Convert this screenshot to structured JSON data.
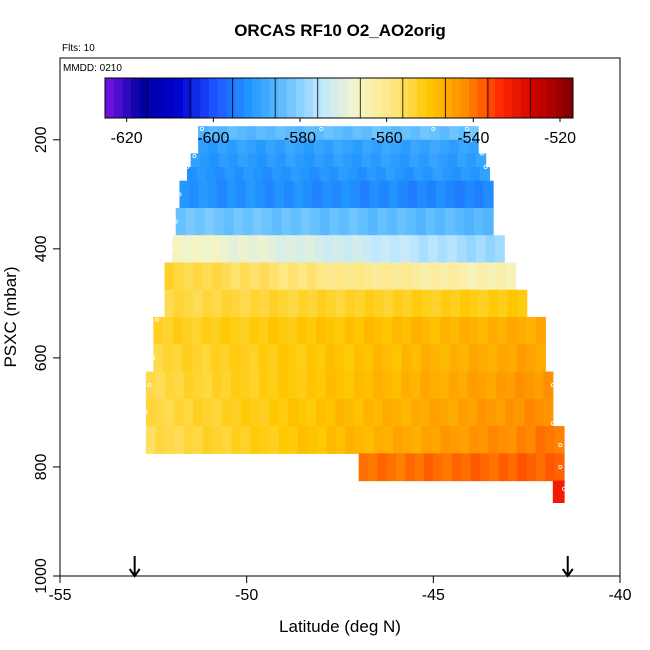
{
  "chart_data": {
    "type": "heatmap",
    "title": "ORCAS RF10 O2_AO2orig",
    "flights_label": "Flts: 10",
    "date_label": "MMDD: 0210",
    "xlabel": "Latitude (deg N)",
    "ylabel": "PSXC (mbar)",
    "xlim": [
      -55,
      -40
    ],
    "ylim": [
      1000,
      50
    ],
    "x_ticks": [
      "-55",
      "-50",
      "-45",
      "-40"
    ],
    "y_ticks": [
      "200",
      "400",
      "600",
      "800",
      "1000"
    ],
    "colorbar": {
      "range": [
        -625,
        -517
      ],
      "tick_values": [
        -620,
        -600,
        -580,
        -560,
        -540,
        -520
      ],
      "tick_labels": [
        "-620",
        "-600",
        "-580",
        "-560",
        "-540",
        "-520"
      ],
      "colors": [
        "#7b14e8",
        "#0000a0",
        "#0000d0",
        "#1e50ff",
        "#2196ff",
        "#64c0ff",
        "#c0e8ff",
        "#f5f5c8",
        "#ffe680",
        "#ffc800",
        "#ff8c00",
        "#ff2800",
        "#c80000",
        "#800000"
      ]
    },
    "arrows_at_lat": [
      -53.0,
      -41.4
    ],
    "rows": [
      {
        "p_top": 175,
        "p_bot": 200,
        "lat_min": -51.3,
        "lat_max": -43.8,
        "value_south": -585,
        "value_north": -583
      },
      {
        "p_top": 200,
        "p_bot": 225,
        "lat_min": -51.3,
        "lat_max": -43.8,
        "value_south": -590,
        "value_north": -589
      },
      {
        "p_top": 225,
        "p_bot": 250,
        "lat_min": -51.5,
        "lat_max": -43.6,
        "value_south": -591,
        "value_north": -590
      },
      {
        "p_top": 250,
        "p_bot": 275,
        "lat_min": -51.6,
        "lat_max": -43.5,
        "value_south": -592,
        "value_north": -591
      },
      {
        "p_top": 275,
        "p_bot": 325,
        "lat_min": -51.8,
        "lat_max": -43.4,
        "value_south": -592,
        "value_north": -594
      },
      {
        "p_top": 325,
        "p_bot": 375,
        "lat_min": -51.9,
        "lat_max": -43.4,
        "value_south": -582,
        "value_north": -585
      },
      {
        "p_top": 375,
        "p_bot": 425,
        "lat_min": -52.0,
        "lat_max": -43.1,
        "value_south": -566,
        "value_north": -579
      },
      {
        "p_top": 425,
        "p_bot": 475,
        "lat_min": -52.2,
        "lat_max": -42.8,
        "value_south": -554,
        "value_north": -565
      },
      {
        "p_top": 475,
        "p_bot": 525,
        "lat_min": -52.2,
        "lat_max": -42.5,
        "value_south": -555,
        "value_north": -551
      },
      {
        "p_top": 525,
        "p_bot": 575,
        "lat_min": -52.5,
        "lat_max": -42.0,
        "value_south": -553,
        "value_north": -546
      },
      {
        "p_top": 575,
        "p_bot": 625,
        "lat_min": -52.5,
        "lat_max": -42.0,
        "value_south": -554,
        "value_north": -545
      },
      {
        "p_top": 625,
        "p_bot": 675,
        "lat_min": -52.7,
        "lat_max": -41.8,
        "value_south": -555,
        "value_north": -543
      },
      {
        "p_top": 675,
        "p_bot": 725,
        "lat_min": -52.7,
        "lat_max": -41.8,
        "value_south": -555,
        "value_north": -542
      },
      {
        "p_top": 725,
        "p_bot": 775,
        "lat_min": -52.7,
        "lat_max": -41.5,
        "value_south": -556,
        "value_north": -540
      },
      {
        "p_top": 775,
        "p_bot": 825,
        "lat_min": -47.0,
        "lat_max": -41.5,
        "value_south": -540,
        "value_north": -538
      },
      {
        "p_top": 825,
        "p_bot": 865,
        "lat_min": -41.8,
        "lat_max": -41.5,
        "value_south": -530,
        "value_north": -530
      }
    ],
    "flight_track": [
      {
        "lat": -51.2,
        "p": 180
      },
      {
        "lat": -48.0,
        "p": 180
      },
      {
        "lat": -45.0,
        "p": 180
      },
      {
        "lat": -44.1,
        "p": 180
      },
      {
        "lat": -44.0,
        "p": 200
      },
      {
        "lat": -43.7,
        "p": 225
      },
      {
        "lat": -43.6,
        "p": 250
      },
      {
        "lat": -51.4,
        "p": 230
      },
      {
        "lat": -51.6,
        "p": 250
      },
      {
        "lat": -51.8,
        "p": 300
      },
      {
        "lat": -51.9,
        "p": 350
      },
      {
        "lat": -52.0,
        "p": 380
      },
      {
        "lat": -52.0,
        "p": 400
      },
      {
        "lat": -52.3,
        "p": 440
      },
      {
        "lat": -52.4,
        "p": 530
      },
      {
        "lat": -52.5,
        "p": 600
      },
      {
        "lat": -52.6,
        "p": 650
      },
      {
        "lat": -52.7,
        "p": 700
      },
      {
        "lat": -41.9,
        "p": 620
      },
      {
        "lat": -41.8,
        "p": 650
      },
      {
        "lat": -41.8,
        "p": 720
      },
      {
        "lat": -41.6,
        "p": 760
      },
      {
        "lat": -41.6,
        "p": 800
      },
      {
        "lat": -41.5,
        "p": 840
      }
    ]
  }
}
